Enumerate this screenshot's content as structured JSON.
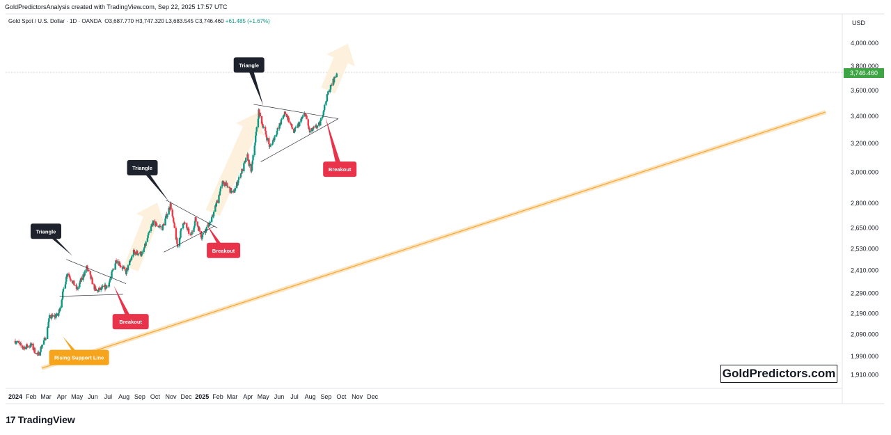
{
  "header": {
    "credit": "GoldPredictorsAnalysis created with TradingView.com, Sep 22, 2025 17:57 UTC",
    "instrument": "Gold Spot / U.S. Dollar · 1D · OANDA",
    "ohlc": "O3,687.770 H3,747.320 L3,683.545 C3,746.460",
    "change": "+61.485 (+1.67%)"
  },
  "axis": {
    "currency": "USD",
    "last_price_label": "3,746.460"
  },
  "watermark": "GoldPredictors.com",
  "brand": {
    "logo": "17",
    "name": "TradingView"
  },
  "colors": {
    "up": "#089981",
    "down": "#f23645",
    "callout_dark": "#1e222d",
    "callout_red": "#e8334a",
    "callout_orange": "#f7a41d",
    "support_line": "#f7a93b",
    "last_price": "#3ea544"
  },
  "annotations": [
    {
      "text": "Triangle",
      "style": "dark"
    },
    {
      "text": "Triangle",
      "style": "dark"
    },
    {
      "text": "Triangle",
      "style": "dark"
    },
    {
      "text": "Breakout",
      "style": "red"
    },
    {
      "text": "Breakout",
      "style": "red"
    },
    {
      "text": "Breakout",
      "style": "red"
    },
    {
      "text": "Rising Support Line",
      "style": "orange"
    }
  ],
  "chart_data": {
    "type": "candlestick",
    "title": "Gold Spot / U.S. Dollar · 1D · OANDA",
    "x_tick_labels": [
      "2024",
      "Feb",
      "Mar",
      "Apr",
      "May",
      "Jun",
      "Jul",
      "Aug",
      "Sep",
      "Oct",
      "Nov",
      "Dec",
      "2025",
      "Feb",
      "Mar",
      "Apr",
      "May",
      "Jun",
      "Jul",
      "Aug",
      "Sep",
      "Oct",
      "Nov",
      "Dec"
    ],
    "y_tick_labels": [
      "4,000.000",
      "3,800.000",
      "3,600.000",
      "3,400.000",
      "3,200.000",
      "3,000.000",
      "2,800.000",
      "2,650.000",
      "2,530.000",
      "2,410.000",
      "2,290.000",
      "2,190.000",
      "2,090.000",
      "1,990.000",
      "1,910.000"
    ],
    "y_axis": "USD",
    "y_scale": "log",
    "last_close": 3746.46,
    "path": [
      [
        "2024-01-01",
        2060
      ],
      [
        "2024-01-15",
        2030
      ],
      [
        "2024-02-01",
        2040
      ],
      [
        "2024-02-14",
        1995
      ],
      [
        "2024-03-01",
        2080
      ],
      [
        "2024-03-08",
        2170
      ],
      [
        "2024-03-25",
        2180
      ],
      [
        "2024-04-12",
        2400
      ],
      [
        "2024-05-01",
        2310
      ],
      [
        "2024-05-20",
        2425
      ],
      [
        "2024-06-07",
        2300
      ],
      [
        "2024-07-01",
        2330
      ],
      [
        "2024-07-17",
        2470
      ],
      [
        "2024-08-05",
        2400
      ],
      [
        "2024-08-20",
        2510
      ],
      [
        "2024-09-06",
        2500
      ],
      [
        "2024-09-26",
        2680
      ],
      [
        "2024-10-15",
        2650
      ],
      [
        "2024-10-31",
        2790
      ],
      [
        "2024-11-14",
        2540
      ],
      [
        "2024-11-25",
        2690
      ],
      [
        "2024-12-10",
        2600
      ],
      [
        "2024-12-19",
        2700
      ],
      [
        "2024-12-31",
        2600
      ],
      [
        "2025-01-20",
        2700
      ],
      [
        "2025-02-11",
        2940
      ],
      [
        "2025-03-03",
        2860
      ],
      [
        "2025-03-31",
        3110
      ],
      [
        "2025-04-07",
        2990
      ],
      [
        "2025-04-22",
        3430
      ],
      [
        "2025-05-14",
        3170
      ],
      [
        "2025-06-13",
        3430
      ],
      [
        "2025-06-30",
        3280
      ],
      [
        "2025-07-22",
        3420
      ],
      [
        "2025-07-31",
        3280
      ],
      [
        "2025-08-20",
        3340
      ],
      [
        "2025-09-05",
        3580
      ],
      [
        "2025-09-22",
        3746
      ]
    ],
    "drawings": [
      {
        "name": "Triangle",
        "kind": "converging trendlines",
        "period": "Apr–Jul 2024"
      },
      {
        "name": "Triangle",
        "kind": "converging trendlines",
        "period": "Oct 2024–Jan 2025"
      },
      {
        "name": "Triangle",
        "kind": "converging trendlines",
        "period": "Apr–Aug 2025"
      },
      {
        "name": "Rising Support Line",
        "kind": "trendline"
      }
    ]
  }
}
